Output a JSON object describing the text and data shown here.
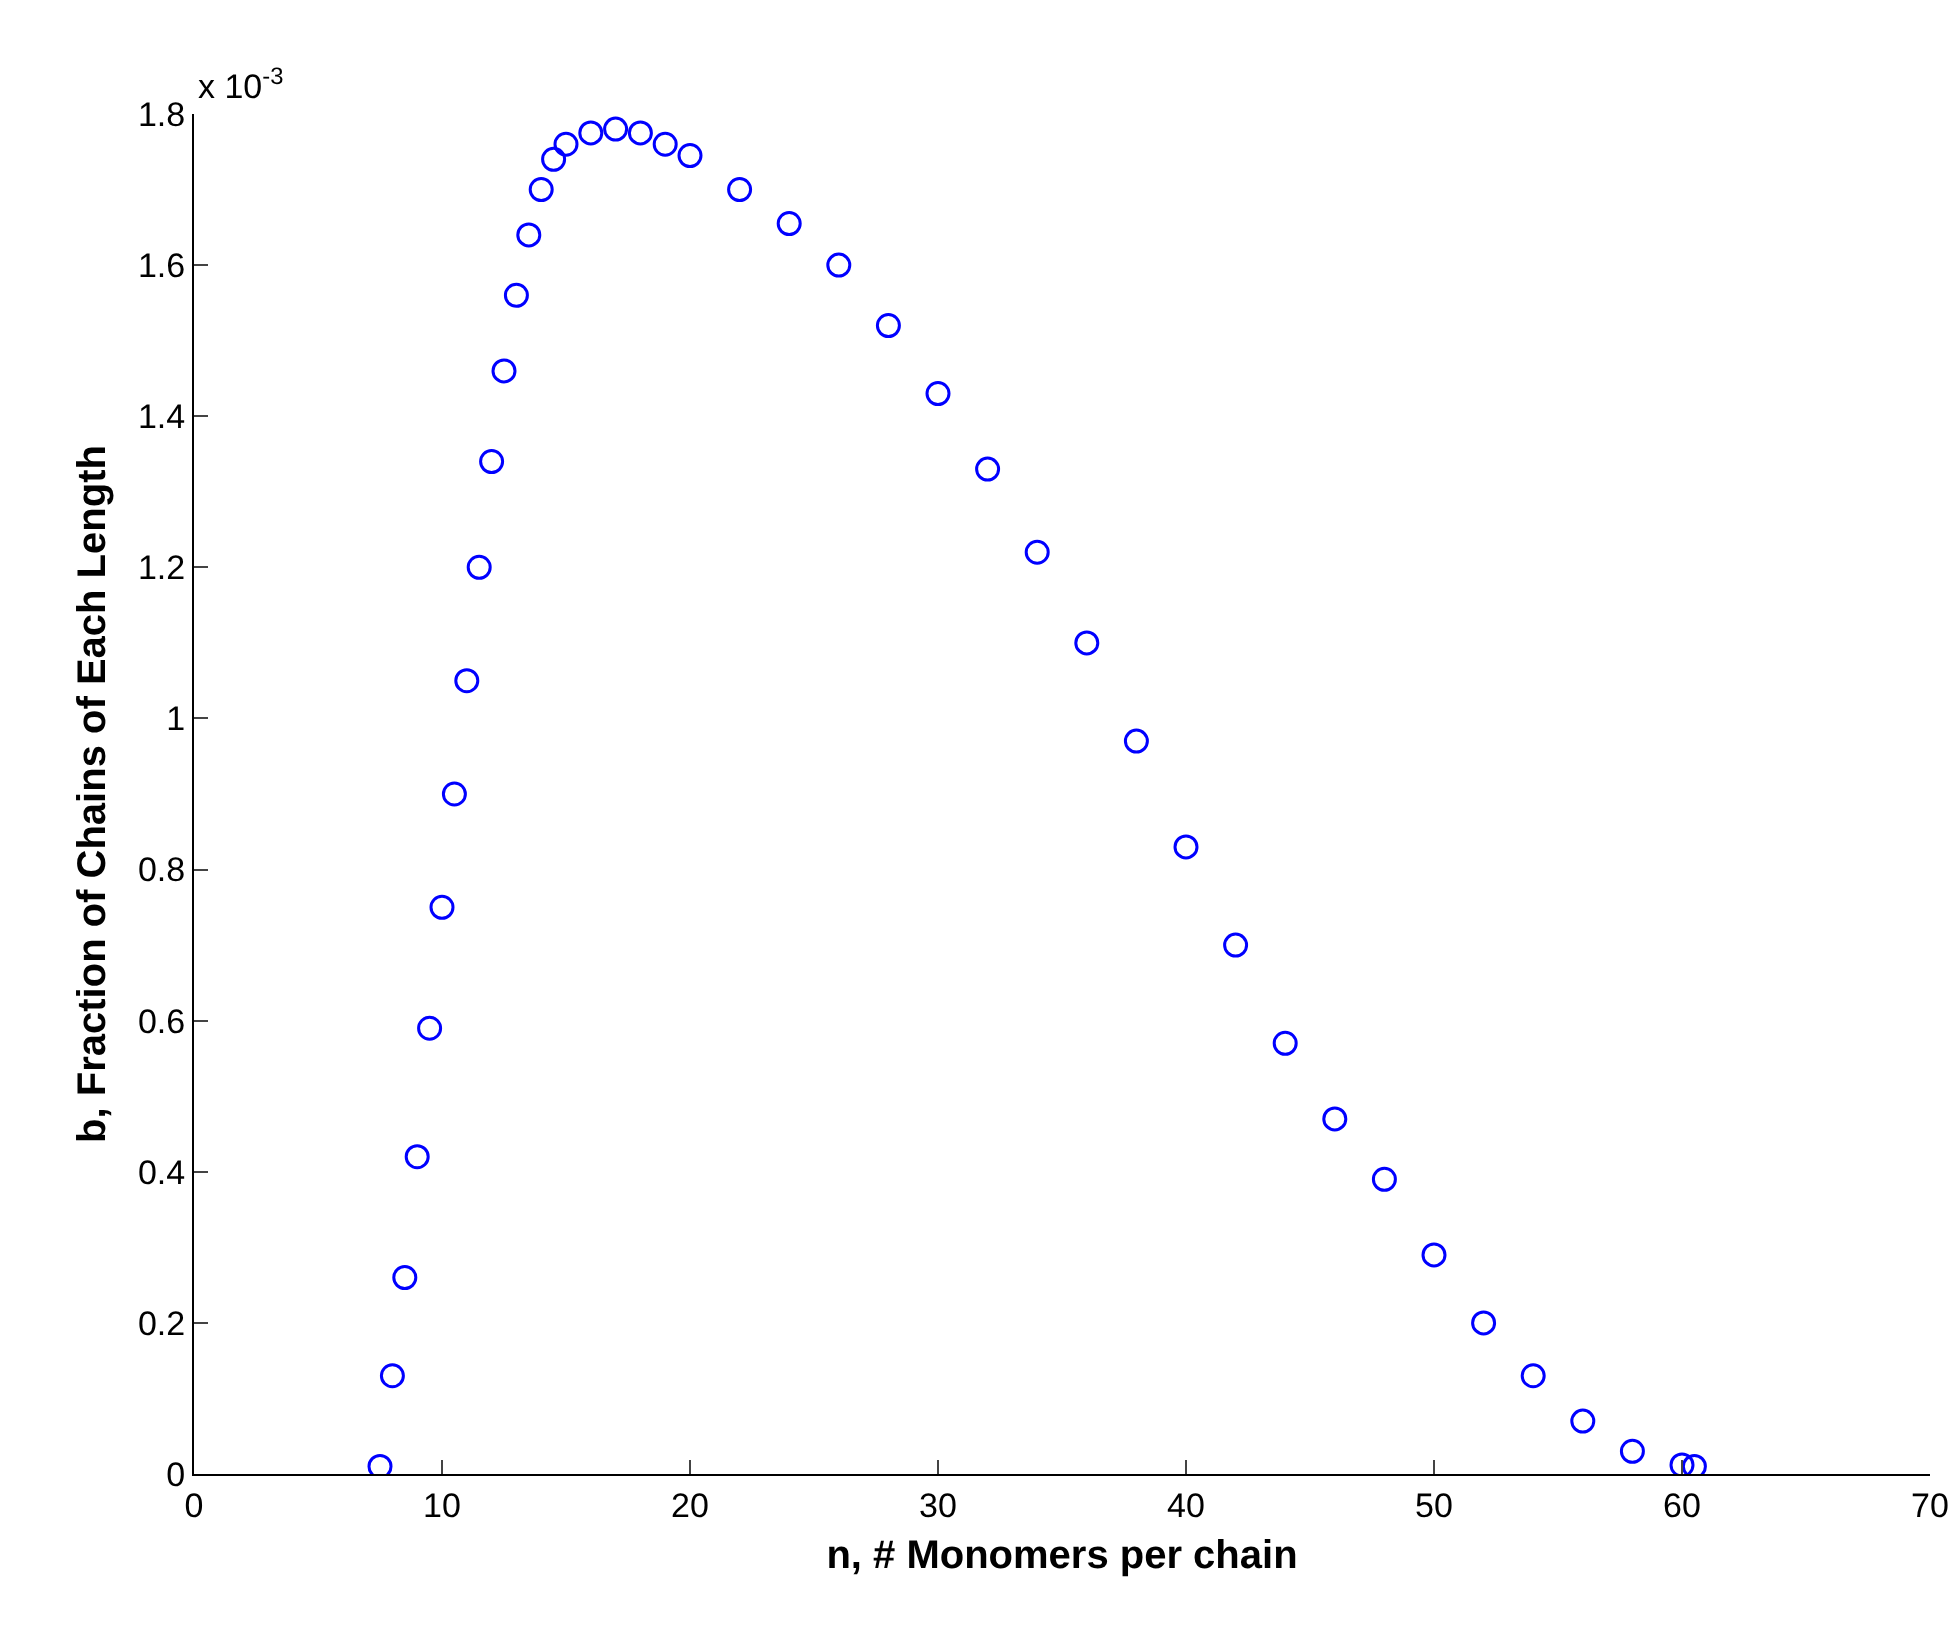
{
  "chart_data": {
    "type": "scatter",
    "xlabel": "n, # Monomers per chain",
    "ylabel": "b, Fraction of Chains of Each Length",
    "annotations": [
      "x 10$^{-3}$"
    ],
    "x": [
      7.5,
      8,
      8.5,
      9,
      9.5,
      10,
      10.5,
      11,
      11.5,
      12,
      12.5,
      13,
      13.5,
      14,
      14.5,
      15,
      16,
      17,
      18,
      19,
      20,
      22,
      24,
      26,
      28,
      30,
      32,
      34,
      36,
      38,
      40,
      42,
      44,
      46,
      48,
      50,
      52,
      54,
      56,
      58,
      60,
      60.5
    ],
    "series": [
      {
        "color": "#0000ff",
        "values": [
          0.01,
          0.13,
          0.26,
          0.42,
          0.59,
          0.75,
          0.9,
          1.05,
          1.2,
          1.34,
          1.46,
          1.56,
          1.64,
          1.7,
          1.74,
          1.76,
          1.775,
          1.78,
          1.775,
          1.76,
          1.745,
          1.7,
          1.655,
          1.6,
          1.52,
          1.43,
          1.33,
          1.22,
          1.1,
          0.97,
          0.83,
          0.7,
          0.57,
          0.47,
          0.39,
          0.29,
          0.2,
          0.13,
          0.07,
          0.03,
          0.012,
          0.01
        ]
      }
    ],
    "xlim": [
      0,
      70
    ],
    "xticks": [
      0,
      10,
      20,
      30,
      40,
      50,
      60,
      70
    ],
    "ylim": [
      0,
      1.8
    ],
    "yticks": [
      0,
      0.2,
      0.4,
      0.6,
      0.8,
      1,
      1.2,
      1.4,
      1.6,
      1.8
    ],
    "marker": "circle",
    "grid": false
  }
}
